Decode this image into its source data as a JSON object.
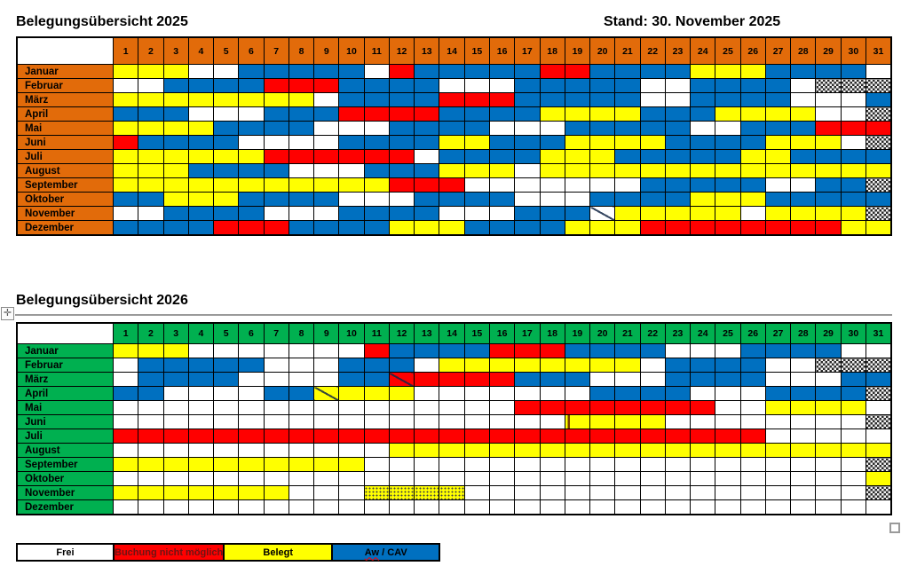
{
  "titles": {
    "overview_2025": "Belegungsübersicht 2025",
    "stand": "Stand: 30. November 2025",
    "overview_2026": "Belegungsübersicht 2026"
  },
  "day_headers": [
    1,
    2,
    3,
    4,
    5,
    6,
    7,
    8,
    9,
    10,
    11,
    12,
    13,
    14,
    15,
    16,
    17,
    18,
    19,
    20,
    21,
    22,
    23,
    24,
    25,
    26,
    27,
    28,
    29,
    30,
    31
  ],
  "cell_code_meanings": {
    "W": "frei (weiß)",
    "R": "Buchung nicht möglich (rot)",
    "Y": "Belegt (gelb)",
    "B": "Aw / CAV (blau)",
    "X": "Tag existiert nicht (schraffiert)",
    "D": "gelb gepunktet",
    "S": "weiß mit Diagonalstrich",
    "T": "rot mit Diagonalstrich",
    "U": "gelb mit Diagonalstrich",
    "V": "gelb mit senkrechtem Strich"
  },
  "colors": {
    "frei": "#FFFFFF",
    "rot": "#FF0000",
    "gelb": "#FFFF00",
    "blau": "#0070C0",
    "header_2025": "#E26B0A",
    "header_2026": "#00B050"
  },
  "tables": [
    {
      "year": "2025",
      "header_bg": "#E26B0A",
      "months": [
        {
          "name": "Januar",
          "cells": "YYYWWBBBBBWRBBBBBRRBBBBYYYBBBBW"
        },
        {
          "name": "Februar",
          "cells": "WWBBBBRRRBBBBWWWBBBBBWWBBBBWXXX"
        },
        {
          "name": "März",
          "cells": "YYYYYYYYWBBBBRRRBBBBBWWBBBBWWWB"
        },
        {
          "name": "April",
          "cells": "BBBWWWBBBRRRRBBBBYYYYBBBYYYYWWX"
        },
        {
          "name": "Mai",
          "cells": "YYYYBBBBWWWBBBBWWWBBBBBWWBBBRRR"
        },
        {
          "name": "Juni",
          "cells": "RBBBBWWWWBBBBYYBBBYYYYBBBBYYYWX"
        },
        {
          "name": "Juli",
          "cells": "YYYYYYRRRRRRWBBBBYYYBBBBBYYBBBB"
        },
        {
          "name": "August",
          "cells": "YYYBBBBWWWBBBYYYWYYYYYYYYYYYYYY"
        },
        {
          "name": "September",
          "cells": "YYYYYYYYYYYRRRWWWWWWWBBBBBWWBBX"
        },
        {
          "name": "Oktober",
          "cells": "BBYYYBBBBWWWBBBBWWWBBBBYYYBBBBB"
        },
        {
          "name": "November",
          "cells": "WWBBBBWWWBBBBWWWBBBSYYYYYWYYYYX"
        },
        {
          "name": "Dezember",
          "cells": "BBBBRRRBBBBYYYBBBBYYYRRRRRRRRYY"
        }
      ]
    },
    {
      "year": "2026",
      "header_bg": "#00B050",
      "months": [
        {
          "name": "Januar",
          "cells": "YYYWWWWWWWRBBBBRRRBBBBWWWBBBBWW"
        },
        {
          "name": "Februar",
          "cells": "WBBBBBWWWBBBWYYYYYYYYWBBBBWWXXX"
        },
        {
          "name": "März",
          "cells": "WBBBBWWWWBBTRRRRBBBWWWBBBBWWWBB"
        },
        {
          "name": "April",
          "cells": "BBWWWWBBUYYYWWWWWWWBBBBWWWBBBBX"
        },
        {
          "name": "Mai",
          "cells": "WWWWWWWWWWWWWWWWRRRRRRRRWWYYYYW"
        },
        {
          "name": "Juni",
          "cells": "WWWWWWWWWWWWWWWWWWVYYYWWWWWWWWX"
        },
        {
          "name": "Juli",
          "cells": "RRRRRRRRRRRRRRRRRRRRRRRRRRWWWWW"
        },
        {
          "name": "August",
          "cells": "WWWWWWWWWWWYYYYYYYYYYYYYYYYYYYY"
        },
        {
          "name": "September",
          "cells": "YYYYYYYYYYWWWWWWWWWWWWWWWWWWWWX"
        },
        {
          "name": "Oktober",
          "cells": "WWWWWWWWWWWWWWWWWWWWWWWWWWWWWWY"
        },
        {
          "name": "November",
          "cells": "YYYYYYYWWWDDDDWWWWWWWWWWWWWWWWX"
        },
        {
          "name": "Dezember",
          "cells": "WWWWWWWWWWWWWWWWWWWWWWWWWWWWWWW"
        }
      ]
    }
  ],
  "legend": {
    "items": [
      {
        "label": "Frei",
        "bg": "#FFFFFF"
      },
      {
        "label": "Buchung nicht möglich",
        "bg": "#FF0000"
      },
      {
        "label": "Belegt",
        "bg": "#FFFF00"
      },
      {
        "label": "Aw / CAV",
        "bg": "#0070C0",
        "word": "Aw",
        "rest": " / CAV"
      }
    ]
  },
  "handles": {
    "move_glyph": "✛"
  }
}
